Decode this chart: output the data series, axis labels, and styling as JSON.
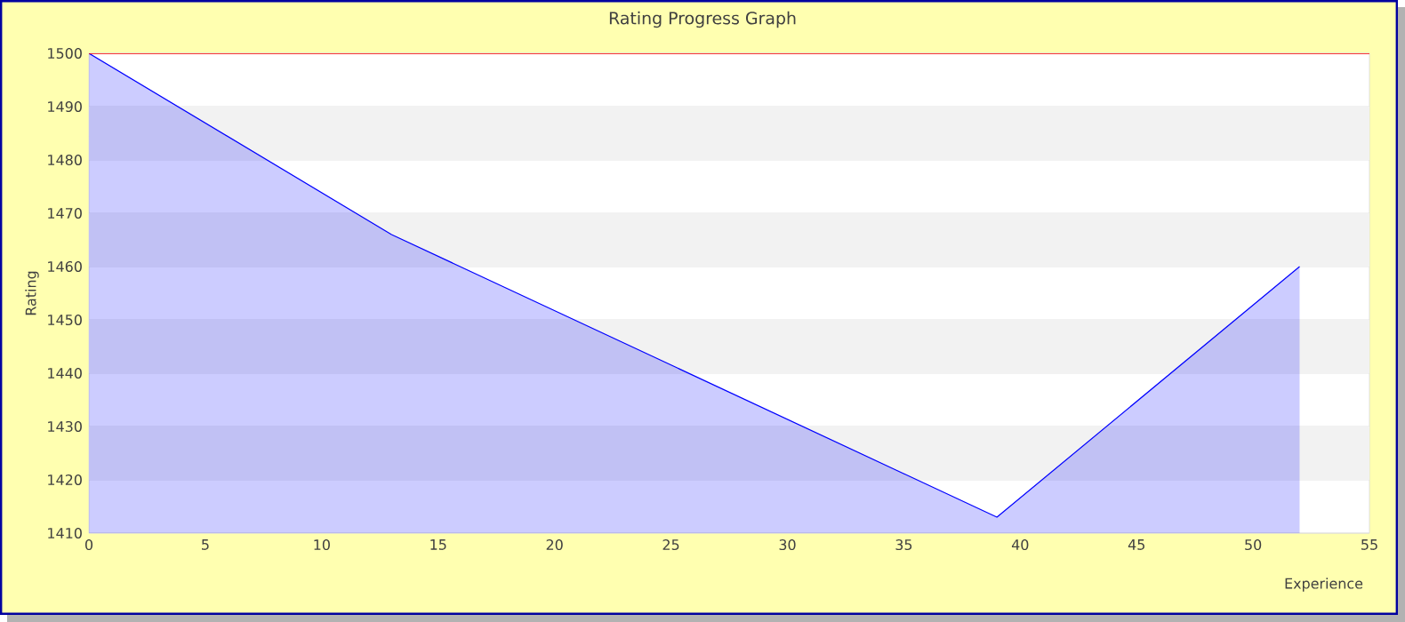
{
  "chart_data": {
    "type": "area",
    "title": "Rating Progress Graph",
    "xlabel": "Experience",
    "ylabel": "Rating",
    "x": [
      0,
      13,
      39,
      52
    ],
    "series": [
      {
        "color": "#0000ff",
        "values": [
          1500,
          1466,
          1413,
          1460
        ]
      }
    ],
    "xlim": [
      0,
      55
    ],
    "xticks": [
      0,
      5,
      10,
      15,
      20,
      25,
      30,
      35,
      40,
      45,
      50,
      55
    ],
    "ylim": [
      1410,
      1500
    ],
    "yticks": [
      1410,
      1420,
      1430,
      1440,
      1450,
      1460,
      1470,
      1480,
      1490,
      1500
    ],
    "grid": "y",
    "ref_lines": [
      {
        "axis": "y",
        "value": 1500,
        "color": "#ff0000"
      }
    ]
  }
}
